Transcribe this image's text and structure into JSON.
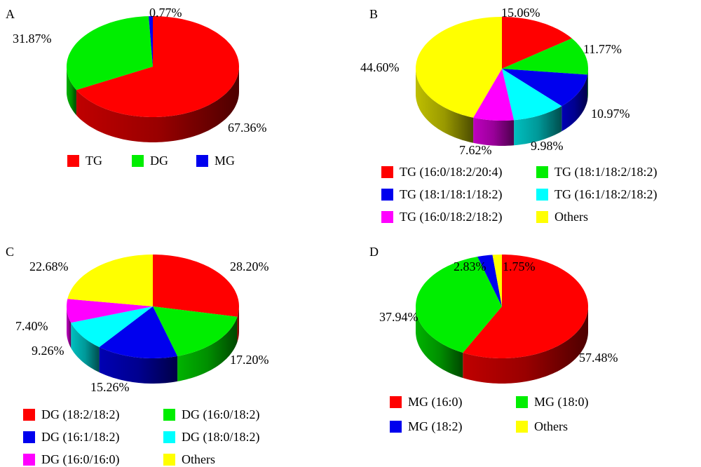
{
  "chart_data": [
    {
      "type": "pie",
      "panel": "A",
      "slices": [
        {
          "name": "TG",
          "value": 67.36,
          "label": "67.36%",
          "color": "#ff0000"
        },
        {
          "name": "DG",
          "value": 31.87,
          "label": "31.87%",
          "color": "#00ee00"
        },
        {
          "name": "MG",
          "value": 0.77,
          "label": "0.77%",
          "color": "#0000ee"
        }
      ]
    },
    {
      "type": "pie",
      "panel": "B",
      "slices": [
        {
          "name": "TG (16:0/18:2/20:4)",
          "value": 15.06,
          "label": "15.06%",
          "color": "#ff0000"
        },
        {
          "name": "TG (18:1/18:2/18:2)",
          "value": 11.77,
          "label": "11.77%",
          "color": "#00ee00"
        },
        {
          "name": "TG (18:1/18:1/18:2)",
          "value": 10.97,
          "label": "10.97%",
          "color": "#0000ee"
        },
        {
          "name": "TG (16:1/18:2/18:2)",
          "value": 9.98,
          "label": "9.98%",
          "color": "#00ffff"
        },
        {
          "name": "TG (16:0/18:2/18:2)",
          "value": 7.62,
          "label": "7.62%",
          "color": "#ff00ff"
        },
        {
          "name": "Others",
          "value": 44.6,
          "label": "44.60%",
          "color": "#ffff00"
        }
      ]
    },
    {
      "type": "pie",
      "panel": "C",
      "slices": [
        {
          "name": "DG (18:2/18:2)",
          "value": 28.2,
          "label": "28.20%",
          "color": "#ff0000"
        },
        {
          "name": "DG (16:0/18:2)",
          "value": 17.2,
          "label": "17.20%",
          "color": "#00ee00"
        },
        {
          "name": "DG (16:1/18:2)",
          "value": 15.26,
          "label": "15.26%",
          "color": "#0000ee"
        },
        {
          "name": "DG (18:0/18:2)",
          "value": 9.26,
          "label": "9.26%",
          "color": "#00ffff"
        },
        {
          "name": "DG (16:0/16:0)",
          "value": 7.4,
          "label": "7.40%",
          "color": "#ff00ff"
        },
        {
          "name": "Others",
          "value": 22.68,
          "label": "22.68%",
          "color": "#ffff00"
        }
      ]
    },
    {
      "type": "pie",
      "panel": "D",
      "slices": [
        {
          "name": "MG (16:0)",
          "value": 57.48,
          "label": "57.48%",
          "color": "#ff0000"
        },
        {
          "name": "MG (18:0)",
          "value": 37.94,
          "label": "37.94%",
          "color": "#00ee00"
        },
        {
          "name": "MG (18:2)",
          "value": 2.83,
          "label": "2.83%",
          "color": "#0000ee"
        },
        {
          "name": "Others",
          "value": 1.75,
          "label": "1.75%",
          "color": "#ffff00"
        }
      ]
    }
  ]
}
